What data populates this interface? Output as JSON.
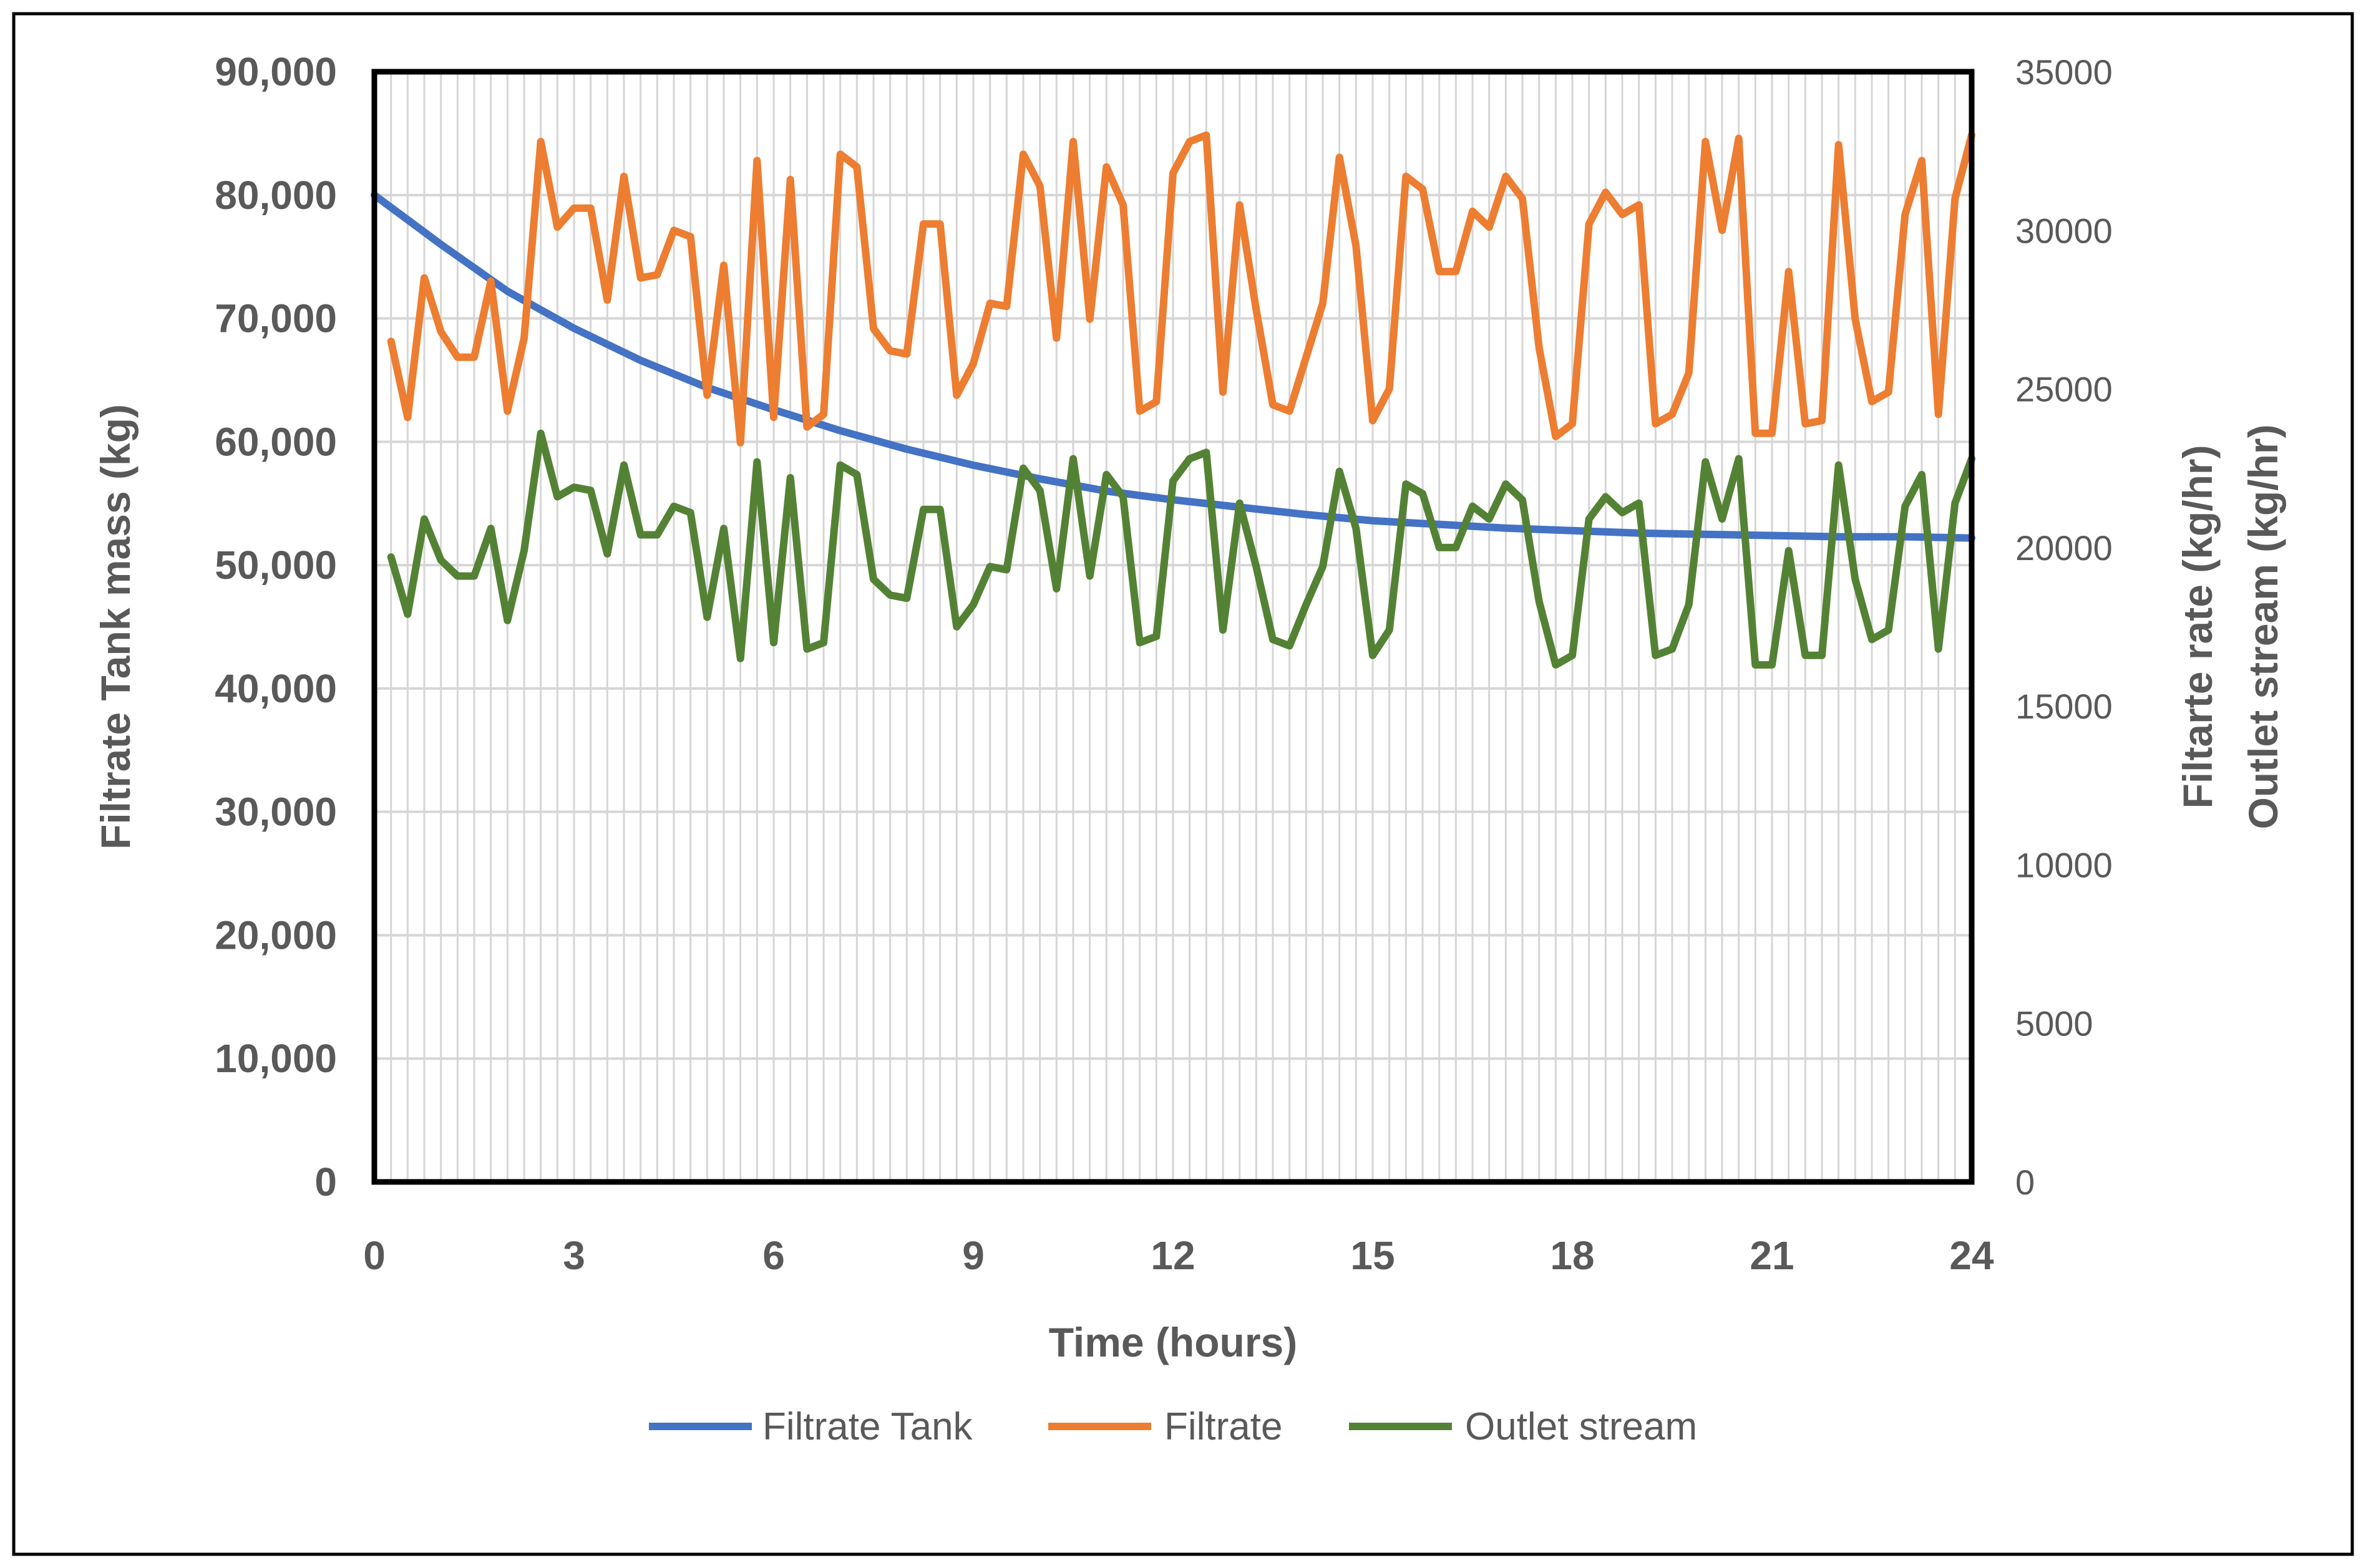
{
  "chart_data": {
    "type": "line",
    "xlabel": "Time (hours)",
    "ylabel_left": "Filtrate Tank mass (kg)",
    "ylabel_right": [
      "Filtarte rate (kg/hr)",
      "Outlet stream (kg/hr)"
    ],
    "xlim": [
      0,
      24
    ],
    "ylim_left": [
      0,
      90000
    ],
    "ylim_right": [
      0,
      35000
    ],
    "x_ticks": [
      "0",
      "3",
      "6",
      "9",
      "12",
      "15",
      "18",
      "21",
      "24"
    ],
    "y_ticks_left": [
      "0",
      "10,000",
      "20,000",
      "30,000",
      "40,000",
      "50,000",
      "60,000",
      "70,000",
      "80,000",
      "90,000"
    ],
    "y_ticks_right": [
      "0",
      "5000",
      "10000",
      "15000",
      "20000",
      "25000",
      "30000",
      "35000"
    ],
    "grid": true,
    "legend_position": "bottom",
    "series": [
      {
        "name": "Filtrate Tank",
        "axis": "left",
        "color": "#4472C4",
        "x": [
          0,
          1,
          2,
          3,
          4,
          5,
          6,
          7,
          8,
          9,
          10,
          11,
          12,
          13,
          14,
          15,
          16,
          17,
          18,
          19,
          20,
          21,
          22,
          23,
          24
        ],
        "values": [
          80000,
          76000,
          72200,
          69200,
          66600,
          64400,
          62600,
          60900,
          59400,
          58100,
          57000,
          56000,
          55300,
          54700,
          54100,
          53600,
          53300,
          53000,
          52800,
          52600,
          52500,
          52400,
          52300,
          52300,
          52200
        ]
      },
      {
        "name": "Filtrate",
        "axis": "right",
        "color": "#ED7D31",
        "x": [
          0.25,
          0.5,
          0.75,
          1,
          1.25,
          1.5,
          1.75,
          2,
          2.25,
          2.5,
          2.75,
          3,
          3.25,
          3.5,
          3.75,
          4,
          4.25,
          4.5,
          4.75,
          5,
          5.25,
          5.5,
          5.75,
          6,
          6.25,
          6.5,
          6.75,
          7,
          7.25,
          7.5,
          7.75,
          8,
          8.25,
          8.5,
          8.75,
          9,
          9.25,
          9.5,
          9.75,
          10,
          10.25,
          10.5,
          10.75,
          11,
          11.25,
          11.5,
          11.75,
          12,
          12.25,
          12.5,
          12.75,
          13,
          13.25,
          13.5,
          13.75,
          14,
          14.25,
          14.5,
          14.75,
          15,
          15.25,
          15.5,
          15.75,
          16,
          16.25,
          16.5,
          16.75,
          17,
          17.25,
          17.5,
          17.75,
          18,
          18.25,
          18.5,
          18.75,
          19,
          19.25,
          19.5,
          19.75,
          20,
          20.25,
          20.5,
          20.75,
          21,
          21.25,
          21.5,
          21.75,
          22,
          22.25,
          22.5,
          22.75,
          23,
          23.25,
          23.5,
          23.75,
          24
        ],
        "values": [
          26500,
          24100,
          28500,
          26800,
          26000,
          26000,
          28400,
          24300,
          26600,
          32800,
          30100,
          30700,
          30700,
          27800,
          31700,
          28500,
          28600,
          30000,
          29800,
          24800,
          28900,
          23300,
          32200,
          24100,
          31600,
          23800,
          24200,
          32400,
          32000,
          26900,
          26200,
          26100,
          30200,
          30200,
          24800,
          25800,
          27700,
          27600,
          32400,
          31400,
          26600,
          32800,
          27200,
          32000,
          30800,
          24300,
          24600,
          31800,
          32800,
          33000,
          24900,
          30800,
          27500,
          24500,
          24300,
          26000,
          27700,
          32300,
          29500,
          24000,
          25000,
          31700,
          31300,
          28700,
          28700,
          30600,
          30100,
          31700,
          31000,
          26300,
          23500,
          23900,
          30200,
          31200,
          30500,
          30800,
          23900,
          24200,
          25500,
          32800,
          30000,
          32900,
          23600,
          23600,
          28700,
          23900,
          24000,
          32700,
          27200,
          24600,
          24900,
          30500,
          32200,
          24200,
          31000,
          33000
        ]
      },
      {
        "name": "Outlet stream",
        "axis": "right",
        "color": "#548235",
        "x": [
          0.25,
          0.5,
          0.75,
          1,
          1.25,
          1.5,
          1.75,
          2,
          2.25,
          2.5,
          2.75,
          3,
          3.25,
          3.5,
          3.75,
          4,
          4.25,
          4.5,
          4.75,
          5,
          5.25,
          5.5,
          5.75,
          6,
          6.25,
          6.5,
          6.75,
          7,
          7.25,
          7.5,
          7.75,
          8,
          8.25,
          8.5,
          8.75,
          9,
          9.25,
          9.5,
          9.75,
          10,
          10.25,
          10.5,
          10.75,
          11,
          11.25,
          11.5,
          11.75,
          12,
          12.25,
          12.5,
          12.75,
          13,
          13.25,
          13.5,
          13.75,
          14,
          14.25,
          14.5,
          14.75,
          15,
          15.25,
          15.5,
          15.75,
          16,
          16.25,
          16.5,
          16.75,
          17,
          17.25,
          17.5,
          17.75,
          18,
          18.25,
          18.5,
          18.75,
          19,
          19.25,
          19.5,
          19.75,
          20,
          20.25,
          20.5,
          20.75,
          21,
          21.25,
          21.5,
          21.75,
          22,
          22.25,
          22.5,
          22.75,
          23,
          23.25,
          23.5,
          23.75,
          24
        ],
        "values": [
          19700,
          17900,
          20900,
          19600,
          19100,
          19100,
          20600,
          17700,
          19900,
          23600,
          21600,
          21900,
          21800,
          19800,
          22600,
          20400,
          20400,
          21300,
          21100,
          17800,
          20600,
          16500,
          22700,
          17000,
          22200,
          16800,
          17000,
          22600,
          22300,
          19000,
          18500,
          18400,
          21200,
          21200,
          17500,
          18200,
          19400,
          19300,
          22500,
          21800,
          18700,
          22800,
          19100,
          22300,
          21600,
          17000,
          17200,
          22100,
          22800,
          23000,
          17400,
          21400,
          19400,
          17100,
          16900,
          18200,
          19400,
          22400,
          20600,
          16600,
          17400,
          22000,
          21700,
          20000,
          20000,
          21300,
          20900,
          22000,
          21500,
          18300,
          16300,
          16600,
          20900,
          21600,
          21100,
          21400,
          16600,
          16800,
          18200,
          22700,
          20900,
          22800,
          16300,
          16300,
          19900,
          16600,
          16600,
          22600,
          19000,
          17100,
          17400,
          21300,
          22300,
          16800,
          21400,
          22800
        ]
      }
    ]
  }
}
